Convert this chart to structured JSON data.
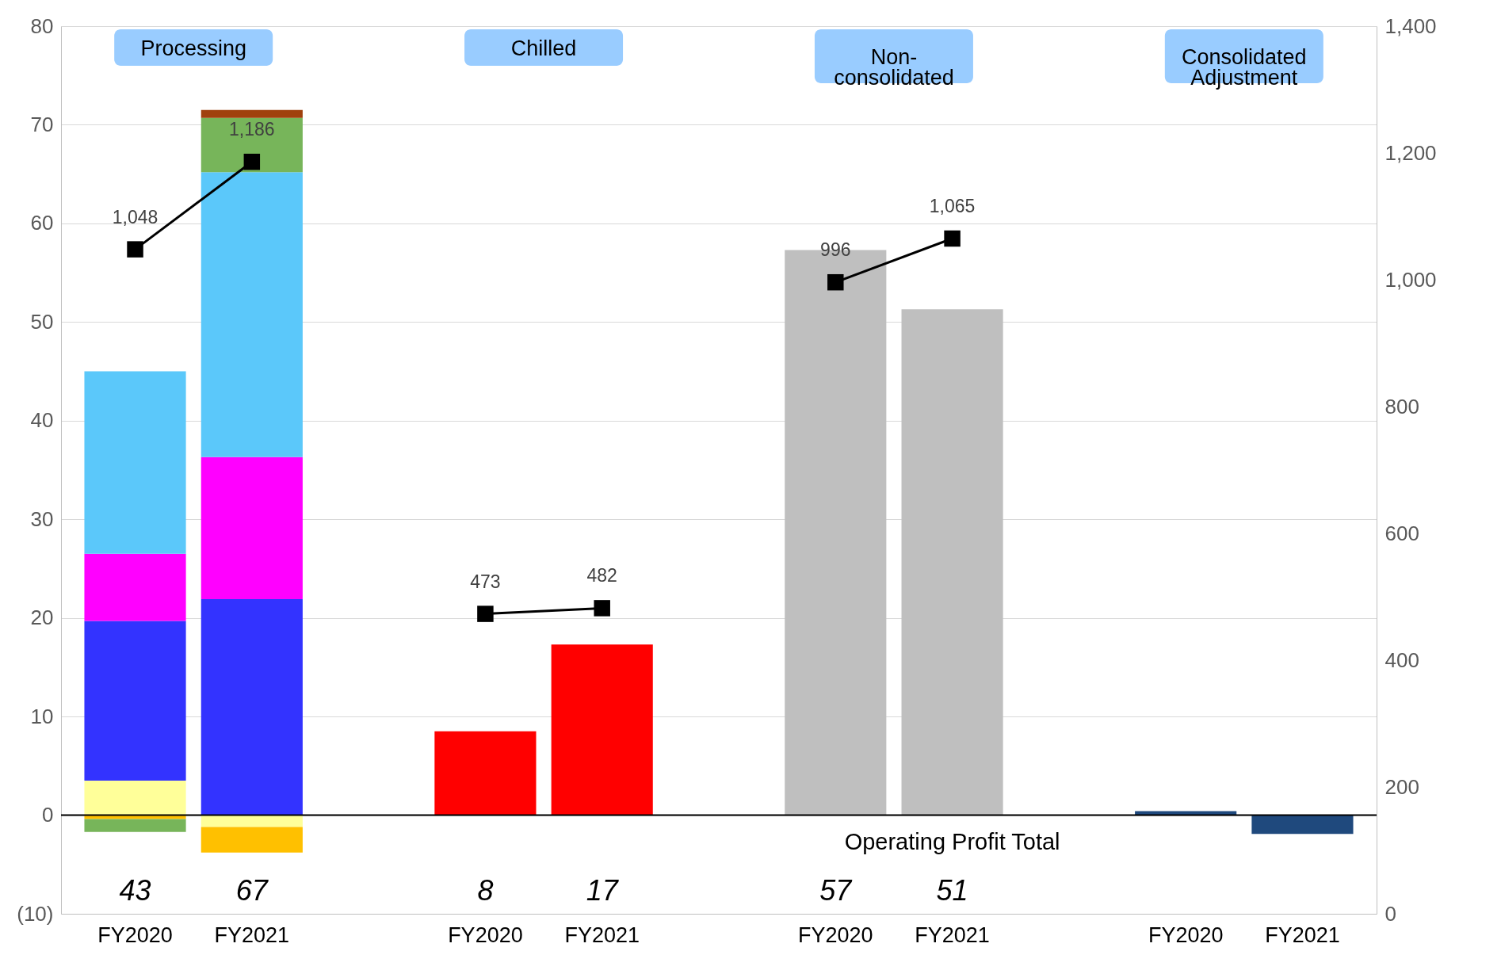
{
  "chart_data": {
    "type": "bar",
    "stacked": true,
    "categories": [
      "FY2020",
      "FY2021",
      null,
      "FY2020",
      "FY2021",
      null,
      "FY2020",
      "FY2021",
      null,
      "FY2020",
      "FY2021"
    ],
    "series": [
      {
        "color": "#ffff99",
        "values": [
          3.5,
          -1.2,
          null,
          null,
          null,
          null,
          null,
          null,
          null,
          null,
          null
        ]
      },
      {
        "color": "#3333ff",
        "values": [
          16.2,
          21.9,
          null,
          null,
          null,
          null,
          null,
          null,
          null,
          null,
          null
        ]
      },
      {
        "color": "#ff00ff",
        "values": [
          6.8,
          14.4,
          null,
          null,
          null,
          null,
          null,
          null,
          null,
          null,
          null
        ]
      },
      {
        "color": "#5bc8fa",
        "values": [
          18.5,
          28.9,
          null,
          null,
          null,
          null,
          null,
          null,
          null,
          null,
          null
        ]
      },
      {
        "color": "#ffc000",
        "values": [
          -0.4,
          -2.6,
          null,
          null,
          null,
          null,
          null,
          null,
          null,
          null,
          null
        ]
      },
      {
        "color": "#77b55a",
        "values": [
          -1.3,
          5.5,
          null,
          null,
          null,
          null,
          null,
          null,
          null,
          null,
          null
        ]
      },
      {
        "color": "#a0410d",
        "values": [
          null,
          0.8,
          null,
          null,
          null,
          null,
          null,
          null,
          null,
          null,
          null
        ]
      },
      {
        "color": "#ff0000",
        "values": [
          null,
          null,
          null,
          8.5,
          17.3,
          null,
          null,
          null,
          null,
          null,
          null
        ]
      },
      {
        "color": "#bfbfbf",
        "values": [
          null,
          null,
          null,
          null,
          null,
          null,
          57.3,
          51.3,
          null,
          null,
          null
        ]
      },
      {
        "color": "#1f497d",
        "values": [
          null,
          null,
          null,
          null,
          null,
          null,
          null,
          null,
          null,
          0.4,
          -1.9
        ]
      },
      {
        "type": "line",
        "axis": "y2",
        "color": "#000000",
        "values": [
          1048,
          1186,
          null,
          null,
          null,
          null,
          null,
          null,
          null,
          null,
          null
        ],
        "value_labels": [
          "1,048",
          "1,186",
          null,
          null,
          null,
          null,
          null,
          null,
          null,
          null,
          null
        ]
      },
      {
        "type": "line",
        "axis": "y2",
        "color": "#000000",
        "values": [
          null,
          null,
          null,
          473,
          482,
          null,
          null,
          null,
          null,
          null,
          null
        ],
        "value_labels": [
          null,
          null,
          null,
          "473",
          "482",
          null,
          null,
          null,
          null,
          null,
          null
        ]
      },
      {
        "type": "line",
        "axis": "y2",
        "color": "#000000",
        "values": [
          null,
          null,
          null,
          null,
          null,
          null,
          996,
          1065,
          null,
          null,
          null
        ],
        "value_labels": [
          null,
          null,
          null,
          null,
          null,
          null,
          "996",
          "1,065",
          null,
          null,
          null
        ]
      }
    ],
    "totals": [
      "43",
      "67",
      null,
      "8",
      "17",
      null,
      "57",
      "51",
      null,
      null,
      null
    ],
    "ylim": [
      -10,
      80
    ],
    "yticks": [
      {
        "value": -10,
        "label": "(10)"
      },
      0,
      10,
      20,
      30,
      40,
      50,
      60,
      70,
      80
    ],
    "y2lim": [
      0,
      1400
    ],
    "y2ticks": [
      {
        "value": 0,
        "label": "0"
      },
      {
        "value": 200,
        "label": "200"
      },
      {
        "value": 400,
        "label": "400"
      },
      {
        "value": 600,
        "label": "600"
      },
      {
        "value": 800,
        "label": "800"
      },
      {
        "value": 1000,
        "label": "1,000"
      },
      {
        "value": 1200,
        "label": "1,200"
      },
      {
        "value": 1400,
        "label": "1,400"
      }
    ],
    "ref_lines": [
      {
        "axis": "y",
        "value": 0,
        "color": "#000000"
      }
    ],
    "annotations": [
      "Processing",
      "Chilled",
      "Non-consolidated",
      "Consolidated Adjustment",
      "Operating Profit Total"
    ],
    "grid": "y",
    "marker": "square",
    "legend": false
  }
}
